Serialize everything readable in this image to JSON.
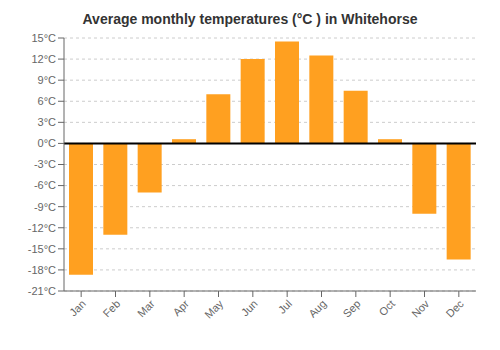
{
  "chart_data": {
    "type": "bar",
    "title": "Average monthly temperatures (°C ) in Whitehorse",
    "categories": [
      "Jan",
      "Feb",
      "Mar",
      "Apr",
      "May",
      "Jun",
      "Jul",
      "Aug",
      "Sep",
      "Oct",
      "Nov",
      "Dec"
    ],
    "values": [
      -18.7,
      -13.0,
      -7.0,
      0.6,
      7.0,
      12.0,
      14.5,
      12.5,
      7.5,
      0.6,
      -10.0,
      -16.5
    ],
    "color": "#FFA020",
    "ylim": [
      -21,
      15
    ],
    "yticks": [
      {
        "value": -21,
        "label": "-21°C"
      },
      {
        "value": -18,
        "label": "-18°C"
      },
      {
        "value": -15,
        "label": "-15°C"
      },
      {
        "value": -12,
        "label": "-12°C"
      },
      {
        "value": -9,
        "label": "-9°C"
      },
      {
        "value": -6,
        "label": "-6°C"
      },
      {
        "value": -3,
        "label": "-3°C"
      },
      {
        "value": 0,
        "label": "0°C"
      },
      {
        "value": 3,
        "label": "3°C"
      },
      {
        "value": 6,
        "label": "6°C"
      },
      {
        "value": 9,
        "label": "9°C"
      },
      {
        "value": 12,
        "label": "12°C"
      },
      {
        "value": 15,
        "label": "15°C"
      }
    ],
    "grid": true
  }
}
